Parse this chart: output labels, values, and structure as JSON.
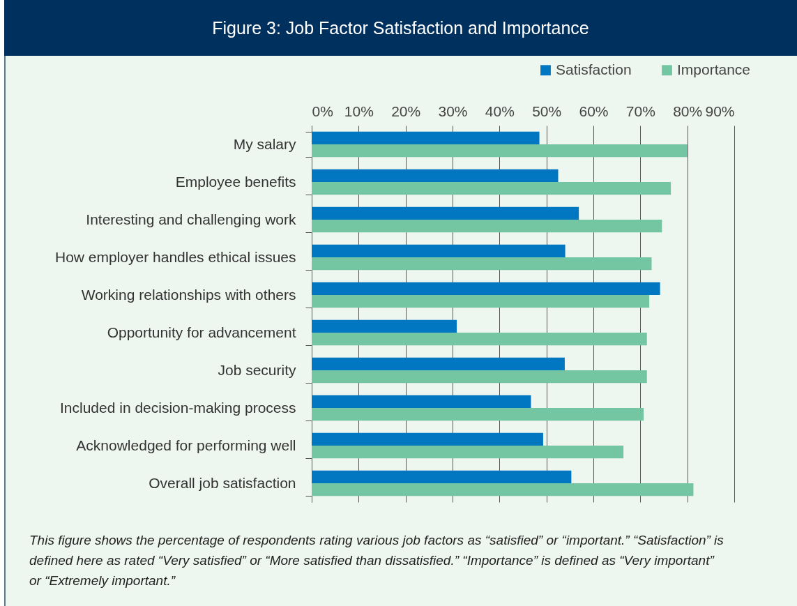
{
  "chart_data": {
    "type": "bar",
    "orientation": "horizontal",
    "title": "Figure 3: Job Factor Satisfaction and Importance",
    "categories": [
      "My salary",
      "Employee benefits",
      "Interesting and challenging work",
      "How employer handles ethical issues",
      "Working relationships with others",
      "Opportunity for advancement",
      "Job security",
      "Included in decision-making process",
      "Acknowledged for performing well",
      "Overall job satisfaction"
    ],
    "series": [
      {
        "name": "Satisfaction",
        "color": "#0077c0",
        "values": [
          48.5,
          52.5,
          56.9,
          54.0,
          74.2,
          30.9,
          53.9,
          46.7,
          49.3,
          55.3
        ]
      },
      {
        "name": "Importance",
        "color": "#73c6a1",
        "values": [
          80.0,
          76.5,
          74.6,
          72.4,
          71.9,
          71.4,
          71.4,
          70.7,
          66.4,
          81.3
        ]
      }
    ],
    "xlim": [
      0,
      90
    ],
    "xticks": [
      {
        "value": 0,
        "label": "0%"
      },
      {
        "value": 10,
        "label": "10%"
      },
      {
        "value": 20,
        "label": "20%"
      },
      {
        "value": 30,
        "label": "30%"
      },
      {
        "value": 40,
        "label": "40%"
      },
      {
        "value": 50,
        "label": "50%"
      },
      {
        "value": 60,
        "label": "60%"
      },
      {
        "value": 70,
        "label": "70%"
      },
      {
        "value": 80,
        "label": "80%"
      },
      {
        "value": 90,
        "label": "90%"
      }
    ],
    "grid": "x",
    "legend": "top right",
    "annotations": [
      "This figure shows the percentage of respondents rating various job factors as “satisfied” or “important.” “Satisfaction” is defined here as rated “Very satisfied” or “More satisfied than dissatisfied.” “Importance” is defined as “Very important” or “Extremely important.”"
    ]
  }
}
